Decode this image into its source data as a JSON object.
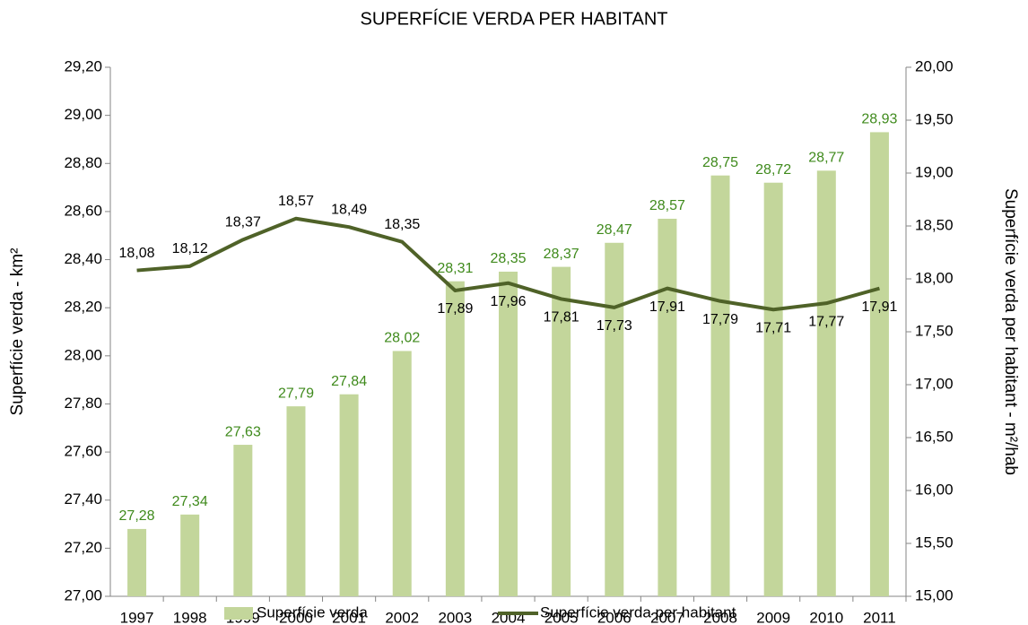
{
  "chart_data": {
    "type": "combo",
    "title": "SUPERFÍCIE VERDA PER HABITANT",
    "y_label": "Superfície verda - km²",
    "y2_label": "Superfície verda per habitant - m²/hab",
    "categories": [
      "1997",
      "1998",
      "1999",
      "2000",
      "2001",
      "2002",
      "2003",
      "2004",
      "2005",
      "2006",
      "2007",
      "2008",
      "2009",
      "2010",
      "2011"
    ],
    "series": [
      {
        "name": "Superfície verda",
        "type": "bar",
        "color": "#c3d69b",
        "values": [
          27.28,
          27.34,
          27.63,
          27.79,
          27.84,
          28.02,
          28.31,
          28.35,
          28.37,
          28.47,
          28.57,
          28.75,
          28.72,
          28.77,
          28.93
        ],
        "value_labels": [
          "27,28",
          "27,34",
          "27,63",
          "27,79",
          "27,84",
          "28,02",
          "28,31",
          "28,35",
          "28,37",
          "28,47",
          "28,57",
          "28,75",
          "28,72",
          "28,77",
          "28,93"
        ]
      },
      {
        "name": "Superfície verda per habitant",
        "type": "line",
        "color": "#4f6228",
        "axis": "y2",
        "values": [
          18.08,
          18.12,
          18.37,
          18.57,
          18.49,
          18.35,
          17.89,
          17.96,
          17.81,
          17.73,
          17.91,
          17.79,
          17.71,
          17.77,
          17.91
        ],
        "value_labels": [
          "18,08",
          "18,12",
          "18,37",
          "18,57",
          "18,49",
          "18,35",
          "17,89",
          "17,96",
          "17,81",
          "17,73",
          "17,91",
          "17,79",
          "17,71",
          "17,77",
          "17,91"
        ]
      }
    ],
    "ylim": [
      27.0,
      29.2
    ],
    "yticks": [
      {
        "value": 27.0,
        "label": "27,00"
      },
      {
        "value": 27.2,
        "label": "27,20"
      },
      {
        "value": 27.4,
        "label": "27,40"
      },
      {
        "value": 27.6,
        "label": "27,60"
      },
      {
        "value": 27.8,
        "label": "27,80"
      },
      {
        "value": 28.0,
        "label": "28,00"
      },
      {
        "value": 28.2,
        "label": "28,20"
      },
      {
        "value": 28.4,
        "label": "28,40"
      },
      {
        "value": 28.6,
        "label": "28,60"
      },
      {
        "value": 28.8,
        "label": "28,80"
      },
      {
        "value": 29.0,
        "label": "29,00"
      },
      {
        "value": 29.2,
        "label": "29,20"
      }
    ],
    "y2lim": [
      15.0,
      20.0
    ],
    "y2ticks": [
      {
        "value": 15.0,
        "label": "15,00"
      },
      {
        "value": 15.5,
        "label": "15,50"
      },
      {
        "value": 16.0,
        "label": "16,00"
      },
      {
        "value": 16.5,
        "label": "16,50"
      },
      {
        "value": 17.0,
        "label": "17,00"
      },
      {
        "value": 17.5,
        "label": "17,50"
      },
      {
        "value": 18.0,
        "label": "18,00"
      },
      {
        "value": 18.5,
        "label": "18,50"
      },
      {
        "value": 19.0,
        "label": "19,00"
      },
      {
        "value": 19.5,
        "label": "19,50"
      },
      {
        "value": 20.0,
        "label": "20,00"
      }
    ],
    "grid": false,
    "legend": "bottom"
  }
}
